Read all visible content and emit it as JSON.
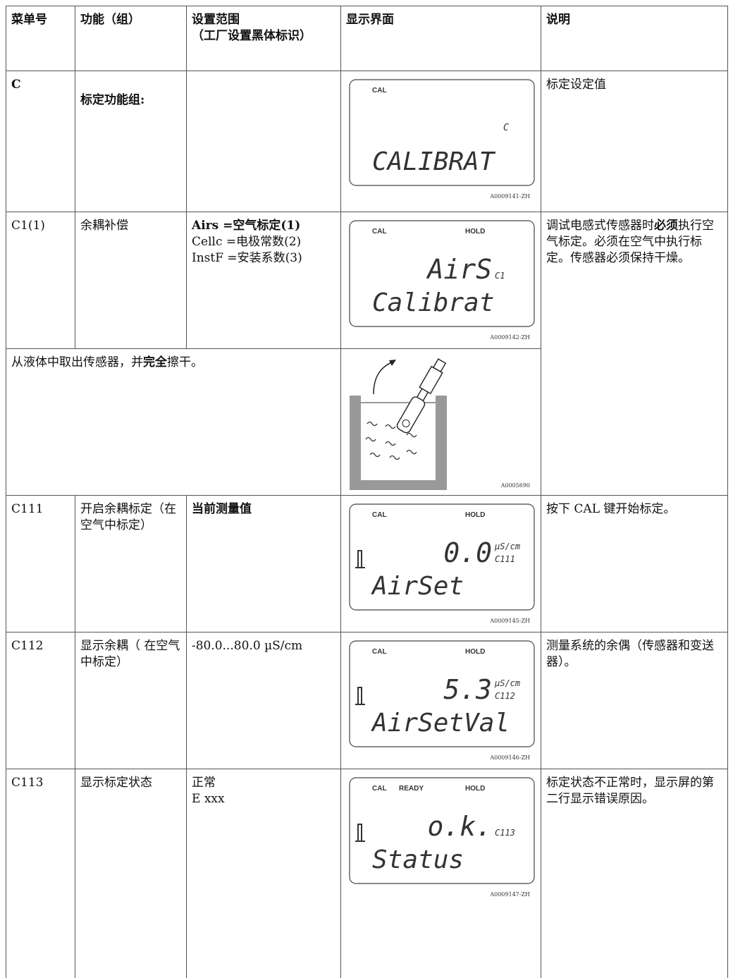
{
  "header": [
    "菜单号",
    "功能（组）",
    "设置范围\n（工厂设置黑体标识）",
    "显示界面",
    "说明"
  ],
  "rows": [
    {
      "menu": "C",
      "function": [
        {
          "text": "标定功能组:",
          "bold": true
        }
      ],
      "settings": [],
      "display": {
        "indicators": [
          "CAL"
        ],
        "code": "C",
        "text": "CALIBRAT",
        "id": "A0009141-ZH"
      },
      "description": [
        {
          "text": "标定设定值",
          "bold": false
        }
      ]
    },
    {
      "menu": "C1(1)",
      "function": [
        {
          "text": "余耦补偿",
          "bold": false
        }
      ],
      "settings": [
        {
          "text": "Airs =空气标定(1)",
          "bold": true
        },
        {
          "text": "Cellc =电极常数(2)",
          "bold": false
        },
        {
          "text": "InstF =安装系数(3)",
          "bold": false
        }
      ],
      "display": {
        "indicators": [
          "CAL",
          "HOLD"
        ],
        "value": "AirS",
        "code": "C1",
        "text": "Calibrat",
        "id": "A0009142-ZH"
      },
      "description": [
        {
          "text": "调试电感式传感器时",
          "bold": false
        },
        {
          "text": "必须",
          "bold": true
        },
        {
          "text": "执行空气标定。必须在空气中执行标定。传感器必须保持干燥。",
          "bold": false
        }
      ]
    },
    {
      "note": [
        {
          "text": "从液体中取出传感器，并",
          "bold": false
        },
        {
          "text": "完全",
          "bold": true
        },
        {
          "text": "擦干。",
          "bold": false
        }
      ],
      "figure_id": "A0005690"
    },
    {
      "menu": "C111",
      "function": [
        {
          "text": "开启余耦标定（在空气中标定）",
          "bold": false
        }
      ],
      "settings": [
        {
          "text": "当前测量值",
          "bold": true
        }
      ],
      "display": {
        "indicators": [
          "CAL",
          "HOLD"
        ],
        "value": "0.0",
        "unit": "µS/cm",
        "code": "C111",
        "text": "AirSet",
        "id": "A0009145-ZH",
        "probe": true
      },
      "description": [
        {
          "text": "按下 CAL 键开始标定。",
          "bold": false
        }
      ]
    },
    {
      "menu": "C112",
      "function": [
        {
          "text": "显示余耦（ 在空气中标定）",
          "bold": false
        }
      ],
      "settings": [
        {
          "text": "-80.0...80.0 µS/cm",
          "bold": false
        }
      ],
      "display": {
        "indicators": [
          "CAL",
          "HOLD"
        ],
        "value": "5.3",
        "unit": "µS/cm",
        "code": "C112",
        "text": "AirSetVal",
        "id": "A0009146-ZH",
        "probe": true
      },
      "description": [
        {
          "text": "测量系统的余偶（传感器和变送器）。",
          "bold": false
        }
      ]
    },
    {
      "menu": "C113",
      "function": [
        {
          "text": "显示标定状态",
          "bold": false
        }
      ],
      "settings": [
        {
          "text": "正常",
          "bold": false
        },
        {
          "text": "E xxx",
          "bold": false
        }
      ],
      "display": {
        "indicators": [
          "CAL",
          "READY",
          "HOLD"
        ],
        "value": "o.k.",
        "code": "C113",
        "text": "Status",
        "id": "A0009147-ZH",
        "probe": true
      },
      "description": [
        {
          "text": "标定状态不正常时，显示屏的第二行显示错误原因。",
          "bold": false
        }
      ]
    }
  ]
}
